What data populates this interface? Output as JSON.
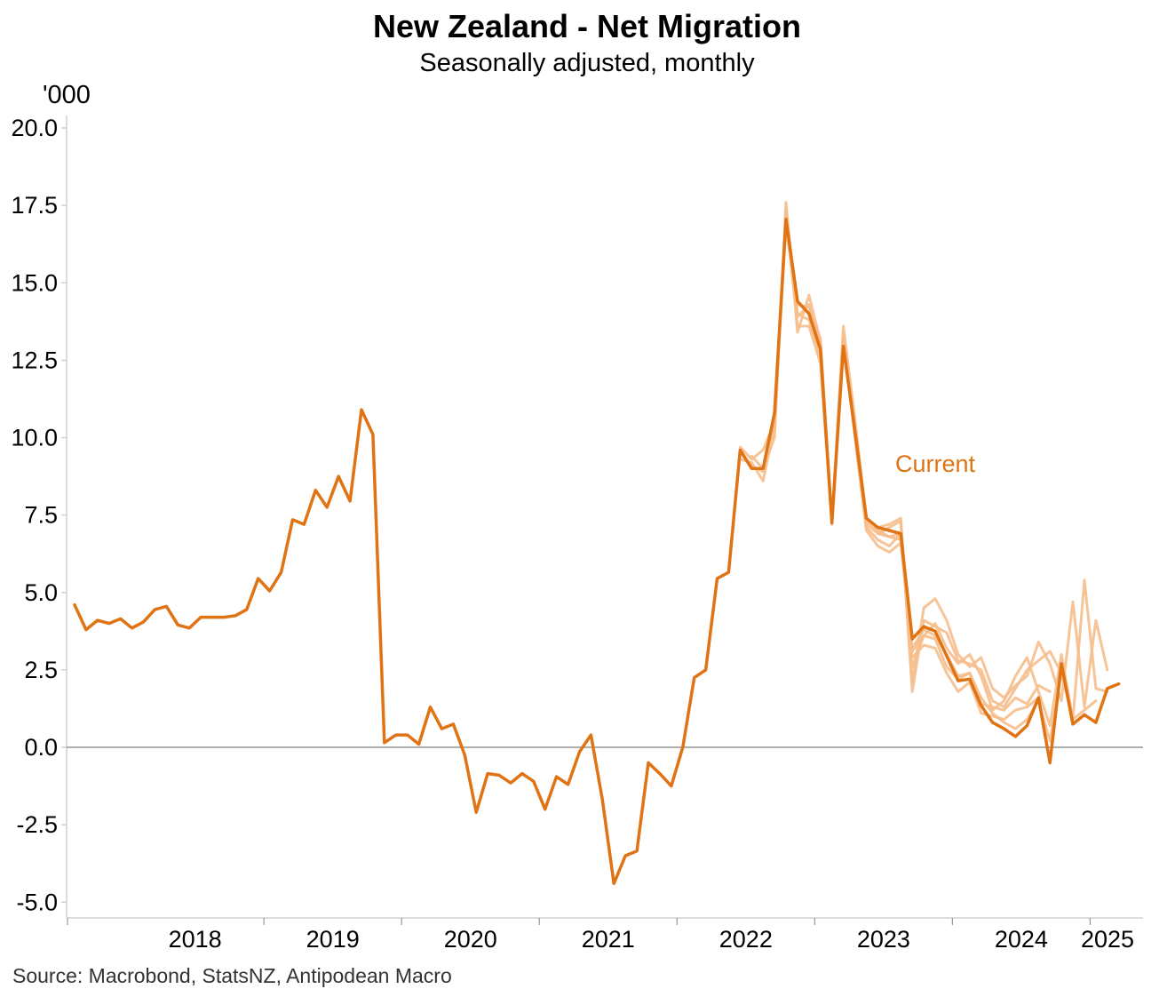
{
  "chart_data": {
    "type": "line",
    "title": "New Zealand - Net Migration",
    "subtitle": "Seasonally adjusted, monthly",
    "ylabel": "'000",
    "ylim": [
      -5.5,
      20.5
    ],
    "yticks": [
      "20.0",
      "17.5",
      "15.0",
      "12.5",
      "10.0",
      "7.5",
      "5.0",
      "2.5",
      "0.0",
      "-2.5",
      "-5.0"
    ],
    "ytick_values": [
      20,
      17.5,
      15,
      12.5,
      10,
      7.5,
      5,
      2.5,
      0,
      -2.5,
      -5
    ],
    "xticks": [
      "2018",
      "2019",
      "2020",
      "2021",
      "2022",
      "2023",
      "2024",
      "2025"
    ],
    "start_month": "2017-08",
    "grid": false,
    "source": "Source: Macrobond, StatsNZ, Antipodean Macro",
    "colors": {
      "current": "#E07314",
      "vintage": "#F6BE8C",
      "zero_line": "#7f7f7f",
      "axis": "#d0d0d0"
    },
    "series": [
      {
        "name": "Current",
        "values": [
          4.6,
          3.8,
          4.1,
          4.0,
          4.15,
          3.85,
          4.05,
          4.45,
          4.55,
          3.95,
          3.85,
          4.2,
          4.2,
          4.2,
          4.25,
          4.45,
          5.45,
          5.05,
          5.65,
          7.35,
          7.2,
          8.3,
          7.75,
          8.75,
          7.95,
          10.9,
          10.1,
          0.15,
          0.4,
          0.4,
          0.1,
          1.3,
          0.6,
          0.75,
          -0.25,
          -2.1,
          -0.85,
          -0.9,
          -1.15,
          -0.85,
          -1.1,
          -2.0,
          -0.95,
          -1.2,
          -0.15,
          0.4,
          -1.7,
          -4.4,
          -3.5,
          -3.35,
          -0.5,
          -0.85,
          -1.25,
          0.0,
          2.25,
          2.5,
          5.45,
          5.65,
          9.6,
          9.0,
          9.0,
          10.8,
          17.05,
          14.4,
          14.0,
          12.85,
          7.25,
          12.95,
          10.2,
          7.4,
          7.1,
          7.0,
          6.9,
          3.5,
          3.9,
          3.75,
          2.95,
          2.15,
          2.2,
          1.35,
          0.8,
          0.6,
          0.35,
          0.7,
          1.6,
          -0.5,
          2.7,
          0.75,
          1.05,
          0.8,
          1.9,
          2.05
        ]
      }
    ],
    "revisions": [
      {
        "start": 58,
        "values": [
          9.3,
          9.2,
          8.6,
          10.4,
          17.4,
          14.0,
          13.8,
          12.6,
          7.3,
          13.4,
          10.1,
          7.1,
          6.7,
          6.5,
          6.9,
          2.9,
          3.3,
          3.2,
          2.4,
          1.8,
          2.1,
          1.1,
          1.0,
          0.9,
          1.2,
          1.3,
          1.6
        ]
      },
      {
        "start": 58,
        "values": [
          9.5,
          9.1,
          8.9,
          10.6,
          17.2,
          13.6,
          13.6,
          12.4,
          7.2,
          13.2,
          10.0,
          7.0,
          6.5,
          6.3,
          6.6,
          3.1,
          3.6,
          3.5,
          2.6,
          2.2,
          2.4,
          1.4,
          1.3,
          1.2,
          1.6,
          1.4,
          2.0,
          1.8
        ]
      },
      {
        "start": 58,
        "values": [
          9.7,
          9.3,
          9.6,
          10.5,
          16.9,
          13.9,
          14.3,
          12.9,
          7.3,
          12.9,
          10.3,
          7.2,
          6.9,
          7.1,
          7.3,
          1.8,
          4.1,
          3.9,
          3.7,
          2.8,
          2.7,
          2.5,
          1.5,
          1.3,
          1.9,
          2.5,
          2.8,
          3.1,
          2.4
        ]
      },
      {
        "start": 59,
        "values": [
          9.4,
          9.0,
          10.0,
          17.6,
          13.4,
          14.6,
          13.1,
          7.3,
          13.6,
          10.6,
          7.4,
          7.1,
          7.2,
          7.4,
          2.1,
          4.5,
          4.8,
          4.1,
          3.0,
          2.6,
          2.9,
          1.9,
          1.6,
          2.0,
          2.3,
          3.4,
          2.7,
          1.5,
          4.7,
          1.3,
          4.1,
          2.5
        ]
      },
      {
        "start": 62,
        "values": [
          16.8,
          14.3,
          14.2,
          13.2,
          7.2,
          13.1,
          10.4,
          7.3,
          7.0,
          6.8,
          6.9,
          2.6,
          3.6,
          4.0,
          3.2,
          2.7,
          3.0,
          2.3,
          1.2,
          1.5,
          2.3,
          2.9,
          1.8,
          0.7,
          3.0,
          0.9,
          5.4,
          1.9,
          1.8
        ]
      },
      {
        "start": 70,
        "values": [
          6.9,
          6.8,
          6.7,
          3.2,
          3.8,
          3.6,
          3.0,
          2.3,
          2.4,
          1.6,
          1.1,
          0.8,
          0.6,
          0.9,
          1.5,
          0.2,
          2.4,
          0.9,
          1.2,
          1.5
        ]
      }
    ],
    "annotations": [
      {
        "text": "Current",
        "index": 78,
        "value": 9.0
      }
    ]
  }
}
